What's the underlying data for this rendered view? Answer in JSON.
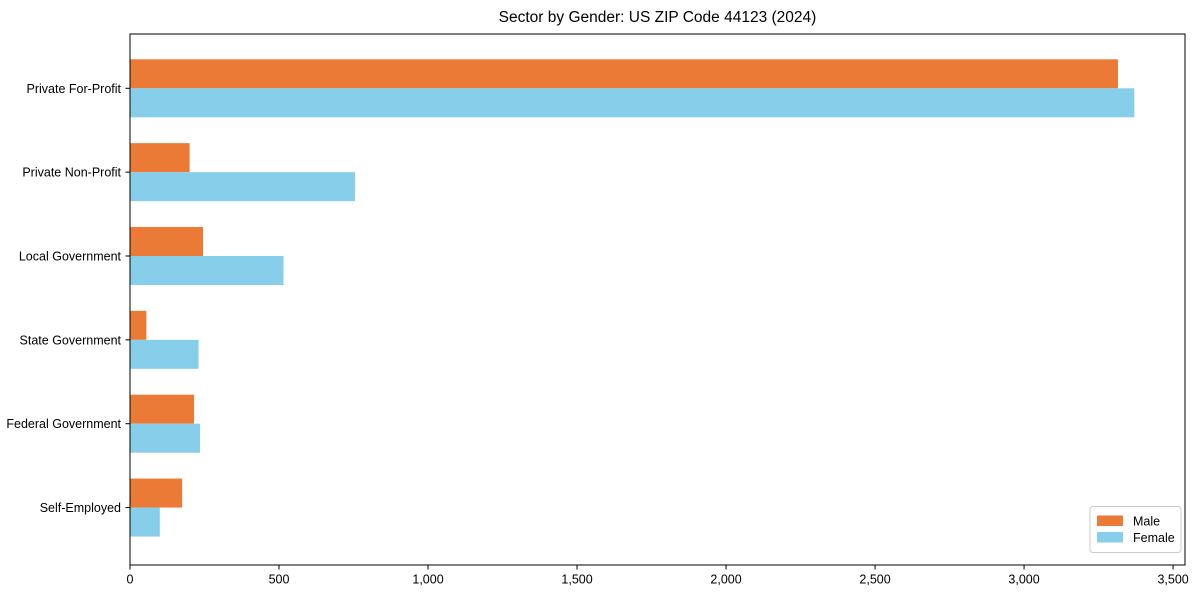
{
  "title": "Sector by Gender: US ZIP Code 44123 (2024)",
  "chart_data": {
    "type": "bar",
    "orientation": "horizontal",
    "title": "Sector by Gender: US ZIP Code 44123 (2024)",
    "categories": [
      "Private For-Profit",
      "Private Non-Profit",
      "Local Government",
      "State Government",
      "Federal Government",
      "Self-Employed"
    ],
    "series": [
      {
        "name": "Male",
        "color": "#EA7A35",
        "values": [
          3315,
          200,
          245,
          55,
          215,
          175
        ]
      },
      {
        "name": "Female",
        "color": "#87CEEB",
        "values": [
          3370,
          755,
          515,
          230,
          235,
          100
        ]
      }
    ],
    "xlabel": "",
    "ylabel": "",
    "xlim": [
      0,
      3540
    ],
    "xticks": [
      0,
      500,
      1000,
      1500,
      2000,
      2500,
      3000,
      3500
    ],
    "xtick_labels": [
      "0",
      "500",
      "1,000",
      "1,500",
      "2,000",
      "2,500",
      "3,000",
      "3,500"
    ],
    "grid": false,
    "legend": {
      "position": "lower-right",
      "entries": [
        "Male",
        "Female"
      ],
      "border_color": "#cccccc",
      "background": "#ffffff"
    },
    "colors": {
      "spine": "#000000",
      "background": "#ffffff"
    }
  }
}
